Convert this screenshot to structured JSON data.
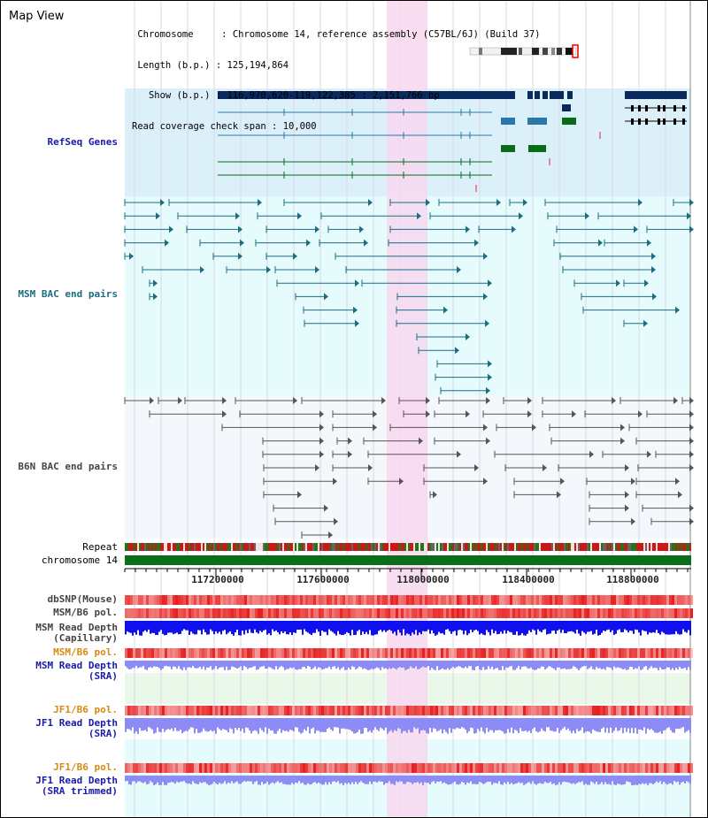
{
  "page": {
    "title": "Map View"
  },
  "info": {
    "chromosome_label": "Chromosome",
    "chromosome_value": "Chromosome 14, reference assembly (C57BL/6J) (Build 37)",
    "length_label": "Length (b.p.)",
    "length_value": "125,194,864",
    "show_label": "Show (b.p.)",
    "show_value": "116,970,620-119,122,385 : 2,151,766 bp",
    "coverage_label": "Read coverage check span",
    "coverage_value": "10,000"
  },
  "tracks": {
    "refseq": "RefSeq Genes",
    "msm_bac": "MSM BAC end pairs",
    "b6n_bac": "B6N BAC end pairs",
    "repeat": "Repeat",
    "chromosome": "chromosome 14",
    "dbsnp": "dbSNP(Mouse)",
    "msm_b6_pol_1": "MSM/B6 pol.",
    "msm_read_depth_cap_1": "MSM Read Depth",
    "msm_read_depth_cap_2": "(Capillary)",
    "msm_b6_pol_2": "MSM/B6 pol.",
    "msm_read_depth_sra_1": "MSM Read Depth",
    "msm_read_depth_sra_2": "(SRA)",
    "jf1_b6_pol_1": "JF1/B6 pol.",
    "jf1_read_depth_sra_1": "JF1 Read Depth",
    "jf1_read_depth_sra_2": "(SRA)",
    "jf1_b6_pol_2": "JF1/B6 pol.",
    "jf1_read_depth_trim_1": "JF1 Read Depth",
    "jf1_read_depth_trim_2": "(SRA trimmed)"
  },
  "axis": {
    "ticks": [
      "117200000",
      "117600000",
      "118000000",
      "118400000",
      "118800000"
    ]
  },
  "colors": {
    "refseq_bg": "#dcf0fa",
    "msm_bg": "#e6fcfc",
    "b6n_bg": "#f4f8fc",
    "highlight": "#f8d8f0",
    "gene_navy": "#0a2a5e",
    "gene_blue": "#2a78a8",
    "gene_green": "#0a6a1a",
    "msm_line": "#1c6d80",
    "b6n_line": "#555555",
    "chrom_green": "#0a6e1a",
    "depth_blue": "#1010ee",
    "depth_light": "#8c8cf4",
    "pol_red": "#ee4444"
  }
}
